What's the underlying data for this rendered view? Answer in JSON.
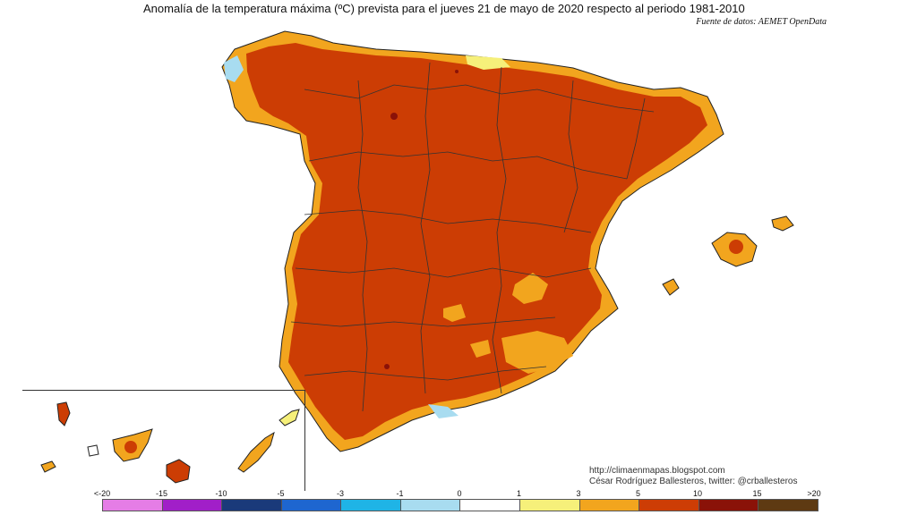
{
  "header": {
    "title": "Anomalía de la temperatura máxima (ºC) prevista para el jueves 21 de mayo de 2020 respecto al periodo 1981-2010",
    "source": "Fuente de datos: AEMET OpenData"
  },
  "credits": {
    "line1": "http://climaenmapas.blogspot.com",
    "line2": "César Rodríguez Ballesteros, twitter: @crballesteros"
  },
  "legend": {
    "labels": [
      "<-20",
      "-15",
      "-10",
      "-5",
      "-3",
      "-1",
      "0",
      "1",
      "3",
      "5",
      "10",
      "15",
      ">20"
    ],
    "colors": [
      "#e57de6",
      "#a11fc8",
      "#1a3a7a",
      "#1e66d0",
      "#1fb4e6",
      "#a8dcf0",
      "#ffffff",
      "#f6f07a",
      "#f2a51e",
      "#cd3d05",
      "#8a1208",
      "#5e3a12"
    ]
  },
  "map_colors": {
    "main": "#cc3d04",
    "dark": "#8a1208",
    "orange": "#f2a51e",
    "yellow": "#f6f07a",
    "light_blue": "#a8dcf0",
    "border": "#333333"
  }
}
